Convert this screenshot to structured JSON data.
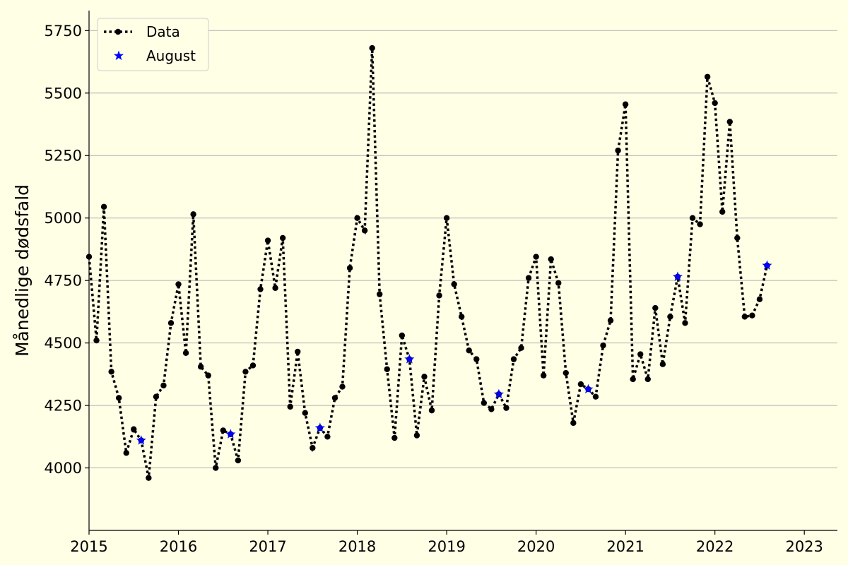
{
  "chart_data": {
    "type": "line",
    "title": "",
    "xlabel": "",
    "ylabel": "Månedlige dødsfald",
    "xlim": [
      2015.0,
      2023.37
    ],
    "ylim": [
      3750,
      5830
    ],
    "x_ticks": [
      2015,
      2016,
      2017,
      2018,
      2019,
      2020,
      2021,
      2022,
      2023
    ],
    "x_tick_labels": [
      "2015",
      "2016",
      "2017",
      "2018",
      "2019",
      "2020",
      "2021",
      "2022",
      "2023"
    ],
    "y_ticks": [
      4000,
      4250,
      4500,
      4750,
      5000,
      5250,
      5500,
      5750
    ],
    "y_tick_labels": [
      "4000",
      "4250",
      "4500",
      "4750",
      "5000",
      "5250",
      "5500",
      "5750"
    ],
    "grid": "horizontal",
    "legend": {
      "position": "top-left",
      "entries": [
        "Data",
        "August"
      ]
    },
    "series": [
      {
        "name": "Data",
        "style": "dotted-line-with-dots",
        "color": "#000000",
        "x": [
          "2015-01",
          "2015-02",
          "2015-03",
          "2015-04",
          "2015-05",
          "2015-06",
          "2015-07",
          "2015-08",
          "2015-09",
          "2015-10",
          "2015-11",
          "2015-12",
          "2016-01",
          "2016-02",
          "2016-03",
          "2016-04",
          "2016-05",
          "2016-06",
          "2016-07",
          "2016-08",
          "2016-09",
          "2016-10",
          "2016-11",
          "2016-12",
          "2017-01",
          "2017-02",
          "2017-03",
          "2017-04",
          "2017-05",
          "2017-06",
          "2017-07",
          "2017-08",
          "2017-09",
          "2017-10",
          "2017-11",
          "2017-12",
          "2018-01",
          "2018-02",
          "2018-03",
          "2018-04",
          "2018-05",
          "2018-06",
          "2018-07",
          "2018-08",
          "2018-09",
          "2018-10",
          "2018-11",
          "2018-12",
          "2019-01",
          "2019-02",
          "2019-03",
          "2019-04",
          "2019-05",
          "2019-06",
          "2019-07",
          "2019-08",
          "2019-09",
          "2019-10",
          "2019-11",
          "2019-12",
          "2020-01",
          "2020-02",
          "2020-03",
          "2020-04",
          "2020-05",
          "2020-06",
          "2020-07",
          "2020-08",
          "2020-09",
          "2020-10",
          "2020-11",
          "2020-12",
          "2021-01",
          "2021-02",
          "2021-03",
          "2021-04",
          "2021-05",
          "2021-06",
          "2021-07",
          "2021-08",
          "2021-09",
          "2021-10",
          "2021-11",
          "2021-12",
          "2022-01",
          "2022-02",
          "2022-03",
          "2022-04",
          "2022-05",
          "2022-06",
          "2022-07",
          "2022-08"
        ],
        "values": [
          4845,
          4510,
          5045,
          4385,
          4280,
          4060,
          4155,
          4110,
          3960,
          4285,
          4330,
          4580,
          4735,
          4460,
          5015,
          4405,
          4370,
          4000,
          4150,
          4135,
          4030,
          4385,
          4410,
          4715,
          4910,
          4720,
          4920,
          4245,
          4465,
          4220,
          4080,
          4160,
          4125,
          4280,
          4325,
          4800,
          5000,
          4950,
          5680,
          4695,
          4395,
          4120,
          4530,
          4435,
          4130,
          4365,
          4230,
          4690,
          5000,
          4735,
          4605,
          4470,
          4435,
          4260,
          4235,
          4295,
          4240,
          4435,
          4480,
          4760,
          4845,
          4370,
          4835,
          4740,
          4380,
          4180,
          4335,
          4315,
          4285,
          4490,
          4590,
          5270,
          5455,
          4355,
          4455,
          4355,
          4640,
          4415,
          4605,
          4765,
          4580,
          5000,
          4975,
          5565,
          5460,
          5025,
          5385,
          4920,
          4605,
          4610,
          4675,
          4810
        ]
      },
      {
        "name": "August",
        "style": "star-markers",
        "color": "#0000ff",
        "x": [
          "2015-08",
          "2016-08",
          "2017-08",
          "2018-08",
          "2019-08",
          "2020-08",
          "2021-08",
          "2022-08"
        ],
        "values": [
          4110,
          4135,
          4160,
          4435,
          4295,
          4315,
          4765,
          4810
        ]
      }
    ]
  },
  "colors": {
    "background": "#ffffe6",
    "grid": "#b0b0b0",
    "data_line": "#000000",
    "august_marker": "#0000ff"
  }
}
